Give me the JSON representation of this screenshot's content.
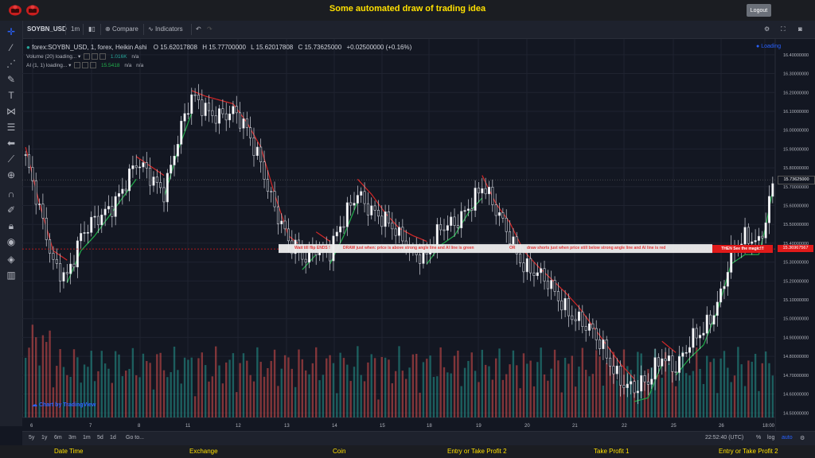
{
  "app": {
    "title": "Some automated draw of trading idea",
    "logout_label": "Logout"
  },
  "toolbar": {
    "symbol": "SOYBN_USD",
    "interval": "1m",
    "compare_label": "Compare",
    "indicators_label": "Indicators"
  },
  "legend": {
    "main": "forex:SOYBN_USD, 1, forex, Heikin Ashi",
    "open": "O 15.62017808",
    "high": "H 15.77700000",
    "low": "L 15.62017808",
    "close": "C 15.73625000",
    "change": "+0.02500000 (+0.16%)",
    "volume_label": "Volume (20) loading...",
    "volume_value": "1.016K",
    "volume_na": "n/a",
    "ai_label": "AI (1, 1) loading...",
    "ai_value": "15.5418",
    "ai_na1": "n/a",
    "ai_na2": "n/a",
    "loading": "Loading"
  },
  "annotation": {
    "part1": "Wait till flip ENDS  !",
    "part2": "DRAW just when:  price is above strong angle line and AI line is green",
    "part3": "OR",
    "part4": "draw shorts just when price still below strong angle line and AI line is red",
    "magic": "THEN See the magic!!!"
  },
  "price_axis": {
    "labels": [
      "16.40000000",
      "16.30000000",
      "16.20000000",
      "16.10000000",
      "16.00000000",
      "15.90000000",
      "15.80000000",
      "15.70000000",
      "15.60000000",
      "15.50000000",
      "15.40000000",
      "15.30000000",
      "15.20000000",
      "15.10000000",
      "15.00000000",
      "14.90000000",
      "14.80000000",
      "14.70000000",
      "14.60000000",
      "14.50000000"
    ],
    "current_price": "15.73625000",
    "line_price": "15.36967567"
  },
  "time_axis": {
    "labels": [
      "6",
      "7",
      "8",
      "11",
      "12",
      "13",
      "14",
      "15",
      "18",
      "19",
      "20",
      "21",
      "22",
      "25",
      "26",
      "18:00"
    ]
  },
  "watermark": "Chart by TradingView",
  "bottombar": {
    "ranges": [
      "5y",
      "1y",
      "6m",
      "3m",
      "1m",
      "5d",
      "1d"
    ],
    "goto": "Go to...",
    "time": "22:52:40 (UTC)",
    "percent": "%",
    "log": "log",
    "auto": "auto"
  },
  "footer": {
    "items": [
      "Date Time",
      "Exchange",
      "Coin",
      "Entry or Take Profit 2",
      "Take Profit 1",
      "Entry or Take Profit 2"
    ]
  },
  "chart_data": {
    "type": "candlestick",
    "ylim": [
      14.48,
      16.45
    ],
    "colors": {
      "up": "#ffffff",
      "down": "#131722",
      "ai_green": "#22b14c",
      "ai_red": "#d62828",
      "volume_up": "#26a69a",
      "volume_down": "#ef5350"
    },
    "anchors": [
      [
        0,
        15.85
      ],
      [
        4,
        15.55
      ],
      [
        8,
        15.3
      ],
      [
        12,
        15.25
      ],
      [
        16,
        15.42
      ],
      [
        20,
        15.5
      ],
      [
        24,
        15.6
      ],
      [
        28,
        15.7
      ],
      [
        32,
        15.8
      ],
      [
        36,
        15.75
      ],
      [
        40,
        15.7
      ],
      [
        44,
        15.95
      ],
      [
        48,
        16.15
      ],
      [
        52,
        16.12
      ],
      [
        56,
        16.1
      ],
      [
        60,
        16.08
      ],
      [
        64,
        15.98
      ],
      [
        68,
        15.85
      ],
      [
        72,
        15.6
      ],
      [
        76,
        15.38
      ],
      [
        80,
        15.32
      ],
      [
        84,
        15.4
      ],
      [
        88,
        15.35
      ],
      [
        92,
        15.5
      ],
      [
        96,
        15.68
      ],
      [
        100,
        15.6
      ],
      [
        104,
        15.5
      ],
      [
        108,
        15.42
      ],
      [
        112,
        15.38
      ],
      [
        116,
        15.35
      ],
      [
        120,
        15.45
      ],
      [
        124,
        15.5
      ],
      [
        128,
        15.62
      ],
      [
        132,
        15.7
      ],
      [
        136,
        15.55
      ],
      [
        140,
        15.45
      ],
      [
        144,
        15.3
      ],
      [
        148,
        15.22
      ],
      [
        152,
        15.15
      ],
      [
        156,
        15.08
      ],
      [
        160,
        15.0
      ],
      [
        164,
        14.9
      ],
      [
        168,
        14.8
      ],
      [
        172,
        14.7
      ],
      [
        176,
        14.62
      ],
      [
        180,
        14.64
      ],
      [
        184,
        14.82
      ],
      [
        188,
        14.76
      ],
      [
        192,
        14.85
      ],
      [
        196,
        14.92
      ],
      [
        200,
        15.1
      ],
      [
        204,
        15.35
      ],
      [
        208,
        15.4
      ],
      [
        212,
        15.4
      ],
      [
        214,
        15.55
      ],
      [
        216,
        15.74
      ]
    ]
  }
}
